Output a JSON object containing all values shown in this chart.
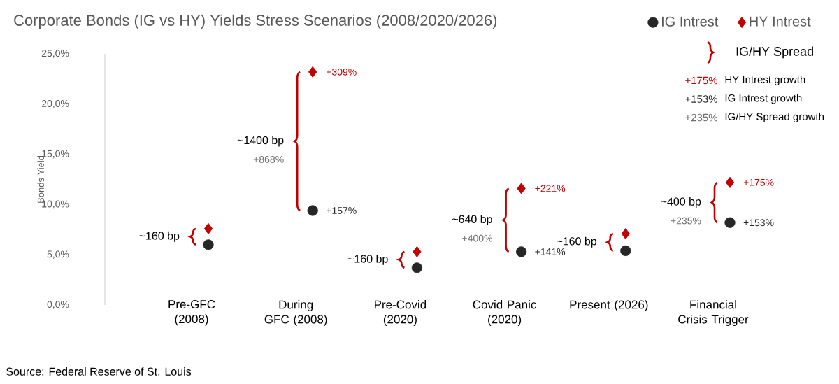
{
  "chart_data": {
    "type": "scatter",
    "title": "Corporate Bonds (IG vs HY) Yields Stress Scenarios (2008/2020/2026)",
    "ylabel": "Bonds Yield",
    "categories": [
      "Pre-GFC (2008)",
      "During GFC (2008)",
      "Pre-Covid (2020)",
      "Covid Panic (2020)",
      "Present (2026)",
      "Financial Crisis Trigger"
    ],
    "series": [
      {
        "name": "IG Intrest",
        "color": "#262626",
        "marker": "circle",
        "values": [
          6.0,
          9.4,
          3.7,
          5.3,
          5.4,
          8.2
        ]
      },
      {
        "name": "HY Intrest",
        "color": "#c00000",
        "marker": "diamond",
        "values": [
          7.6,
          23.2,
          5.3,
          11.6,
          7.1,
          12.2
        ]
      }
    ],
    "ylim": [
      0,
      25
    ],
    "yticks": [
      {
        "value": 0,
        "label": "0,0%"
      },
      {
        "value": 5,
        "label": "5,0%"
      },
      {
        "value": 10,
        "label": "10,0%"
      },
      {
        "value": 15,
        "label": "15,0%"
      },
      {
        "value": 20,
        "label": "20,0%"
      },
      {
        "value": 25,
        "label": "25,0%"
      }
    ],
    "legend": "top right",
    "annotations": [
      "+157%",
      "+309%",
      "+141%",
      "+221%",
      "+153%",
      "+175%",
      "~160 bp",
      "~1400 bp",
      "+868%",
      "~160 bp",
      "~640 bp",
      "+400%",
      "~160 bp",
      "~400 bp",
      "+235%",
      "IG/HY Spread",
      "+175%",
      "HY Intrest growth",
      "+153%",
      "IG Intrest growth",
      "+235%",
      "IG/HY Spread growth",
      "Source: Federal Reserve of St. Louis"
    ]
  }
}
